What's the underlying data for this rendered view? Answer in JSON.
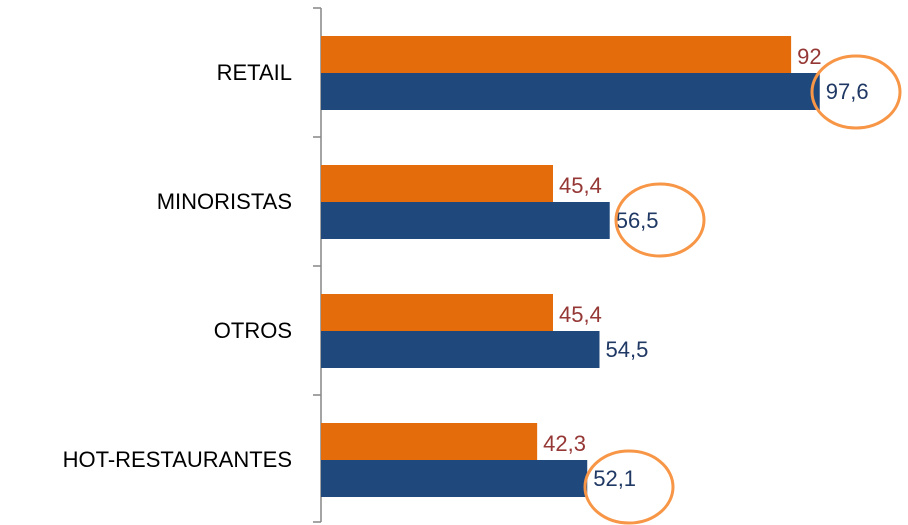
{
  "chart_data": {
    "type": "hbar",
    "categories": [
      "RETAIL",
      "MINORISTAS",
      "OTROS",
      "HOT-RESTAURANTES"
    ],
    "series": [
      {
        "color": "#e46c0a",
        "label_color": "#953735",
        "values": [
          92,
          45.4,
          45.4,
          42.3
        ],
        "value_labels": [
          "92",
          "45,4",
          "45,4",
          "42,3"
        ]
      },
      {
        "color": "#1f497d",
        "label_color": "#1f3864",
        "values": [
          97.6,
          56.5,
          54.5,
          52.1
        ],
        "value_labels": [
          "97,6",
          "56,5",
          "54,5",
          "52,1"
        ]
      }
    ],
    "xlim": [
      0,
      100
    ]
  }
}
